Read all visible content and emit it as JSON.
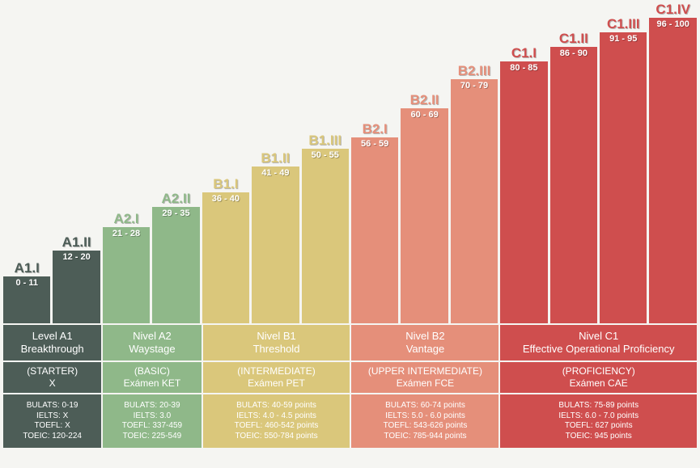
{
  "background_color": "#f5f5f2",
  "chart": {
    "type": "bar",
    "max_value": 100,
    "bars": [
      {
        "level": "A1.I",
        "range": "0 - 11",
        "value": 11,
        "color": "#4d5d57",
        "label_color": "#4d5d57"
      },
      {
        "level": "A1.II",
        "range": "12 - 20",
        "value": 20,
        "color": "#4d5d57",
        "label_color": "#4d5d57"
      },
      {
        "level": "A2.I",
        "range": "21 - 28",
        "value": 28,
        "color": "#8fb889",
        "label_color": "#8fb889"
      },
      {
        "level": "A2.II",
        "range": "29 - 35",
        "value": 35,
        "color": "#8fb889",
        "label_color": "#8fb889"
      },
      {
        "level": "B1.I",
        "range": "36 - 40",
        "value": 40,
        "color": "#dac77b",
        "label_color": "#dac77b"
      },
      {
        "level": "B1.II",
        "range": "41 - 49",
        "value": 49,
        "color": "#dac77b",
        "label_color": "#dac77b"
      },
      {
        "level": "B1.III",
        "range": "50 - 55",
        "value": 55,
        "color": "#dac77b",
        "label_color": "#dac77b"
      },
      {
        "level": "B2.I",
        "range": "56 - 59",
        "value": 59,
        "color": "#e58f7a",
        "label_color": "#e58f7a"
      },
      {
        "level": "B2.II",
        "range": "60 - 69",
        "value": 69,
        "color": "#e58f7a",
        "label_color": "#e58f7a"
      },
      {
        "level": "B2.III",
        "range": "70 - 79",
        "value": 79,
        "color": "#e58f7a",
        "label_color": "#e58f7a"
      },
      {
        "level": "C1.I",
        "range": "80 - 85",
        "value": 85,
        "color": "#cf4e4e",
        "label_color": "#cf4e4e"
      },
      {
        "level": "C1.II",
        "range": "86 - 90",
        "value": 90,
        "color": "#cf4e4e",
        "label_color": "#cf4e4e"
      },
      {
        "level": "C1.III",
        "range": "91 - 95",
        "value": 95,
        "color": "#cf4e4e",
        "label_color": "#cf4e4e"
      },
      {
        "level": "C1.IV",
        "range": "96 - 100",
        "value": 100,
        "color": "#cf4e4e",
        "label_color": "#cf4e4e"
      }
    ]
  },
  "groups": [
    {
      "flex": 2,
      "color": "#4d5d57",
      "r1_line1": "Level A1",
      "r1_line2": "Breakthrough",
      "r2_line1": "(STARTER)",
      "r2_line2": "X",
      "r3": [
        "BULATS: 0-19",
        "IELTS: X",
        "TOEFL: X",
        "TOEIC: 120-224"
      ]
    },
    {
      "flex": 2,
      "color": "#8fb889",
      "r1_line1": "Nivel A2",
      "r1_line2": "Waystage",
      "r2_line1": "(BASIC)",
      "r2_line2": "Exámen KET",
      "r3": [
        "BULATS: 20-39",
        "IELTS: 3.0",
        "TOEFL: 337-459",
        "TOEIC: 225-549"
      ]
    },
    {
      "flex": 3,
      "color": "#dac77b",
      "r1_line1": "Nivel B1",
      "r1_line2": "Threshold",
      "r2_line1": "(INTERMEDIATE)",
      "r2_line2": "Exámen PET",
      "r3": [
        "BULATS: 40-59 points",
        "IELTS: 4.0 - 4.5 points",
        "TOEFL: 460-542 points",
        "TOEIC: 550-784 points"
      ]
    },
    {
      "flex": 3,
      "color": "#e58f7a",
      "r1_line1": "Nivel B2",
      "r1_line2": "Vantage",
      "r2_line1": "(UPPER INTERMEDIATE)",
      "r2_line2": "Exámen FCE",
      "r3": [
        "BULATS: 60-74 points",
        "IELTS: 5.0 - 6.0 points",
        "TOEFL: 543-626 points",
        "TOEIC: 785-944 points"
      ]
    },
    {
      "flex": 4,
      "color": "#cf4e4e",
      "r1_line1": "Nivel C1",
      "r1_line2": "Effective Operational Proficiency",
      "r2_line1": "(PROFICIENCY)",
      "r2_line2": "Exámen CAE",
      "r3": [
        "BULATS: 75-89 points",
        "IELTS: 6.0 - 7.0 points",
        "TOEFL: 627 points",
        "TOEIC: 945 points"
      ]
    }
  ]
}
